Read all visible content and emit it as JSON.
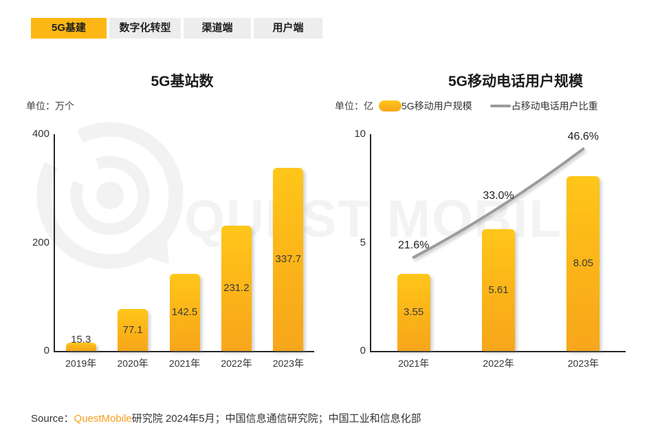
{
  "tabs": [
    {
      "label": "5G基建",
      "active": true
    },
    {
      "label": "数字化转型",
      "active": false
    },
    {
      "label": "渠道端",
      "active": false
    },
    {
      "label": "用户端",
      "active": false
    }
  ],
  "watermark": {
    "text": "QUEST MOBILE"
  },
  "source": {
    "prefix": "Source：",
    "brand": "QuestMobile",
    "suffix": "研究院 2024年5月；中国信息通信研究院；中国工业和信息化部"
  },
  "colors": {
    "accent_yellow": "#FDB714",
    "bar_gradient_top": "#FFC61A",
    "bar_gradient_bottom": "#F7A61B",
    "line_gray": "#9B9B9B",
    "tab_inactive_bg": "#EDEDED",
    "text_dark": "#262626",
    "watermark_gray": "#F3F3F3",
    "source_brand_orange": "#F99D1C"
  },
  "chart_data": [
    {
      "type": "bar",
      "title": "5G基站数",
      "unit_label": "单位：万个",
      "categories": [
        "2019年",
        "2020年",
        "2021年",
        "2022年",
        "2023年"
      ],
      "values": [
        15.3,
        77.1,
        142.5,
        231.2,
        337.7
      ],
      "value_labels": [
        "15.3",
        "77.1",
        "142.5",
        "231.2",
        "337.7"
      ],
      "ylim": [
        0,
        400
      ],
      "yticks": [
        0,
        200,
        400
      ],
      "grid": false,
      "legend_position": "none"
    },
    {
      "type": "bar+line",
      "title": "5G移动电话用户规模",
      "unit_label": "单位：亿",
      "categories": [
        "2021年",
        "2022年",
        "2023年"
      ],
      "series": [
        {
          "name": "5G移动用户规模",
          "type": "bar",
          "axis": "left",
          "values": [
            3.55,
            5.61,
            8.05
          ],
          "value_labels": [
            "3.55",
            "5.61",
            "8.05"
          ]
        },
        {
          "name": "占移动电话用户比重",
          "type": "line",
          "axis": "right",
          "values": [
            21.6,
            33.0,
            46.6
          ],
          "value_labels": [
            "21.6%",
            "33.0%",
            "46.6%"
          ]
        }
      ],
      "ylim": [
        0,
        10
      ],
      "yticks": [
        0,
        5,
        10
      ],
      "y2lim": [
        0,
        50
      ],
      "grid": false,
      "legend_position": "top"
    }
  ]
}
